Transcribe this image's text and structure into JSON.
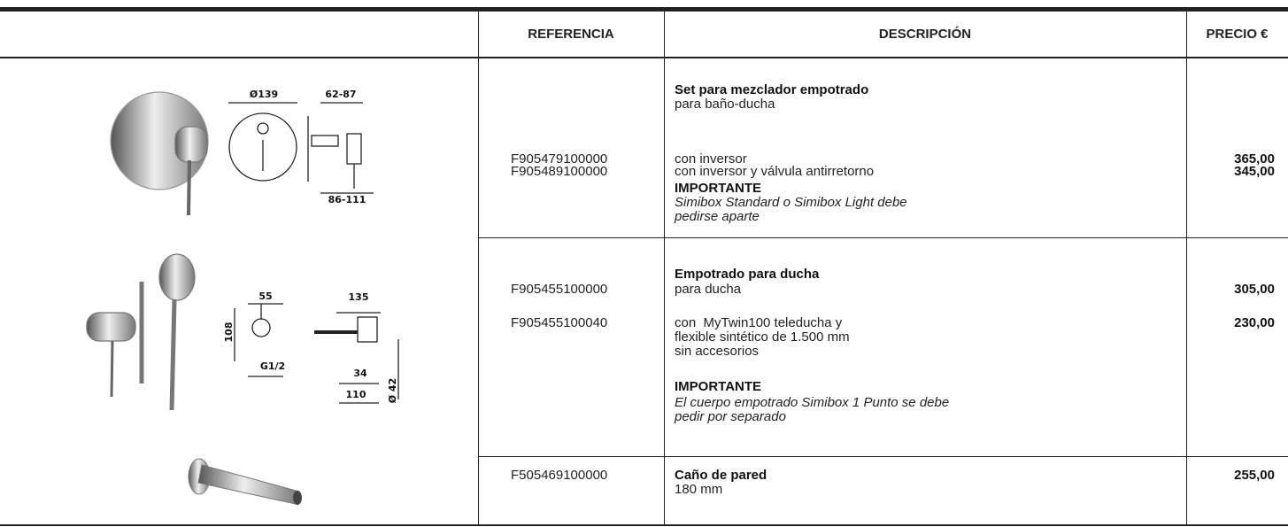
{
  "header": {
    "referencia": "REFERENCIA",
    "descripcion": "DESCRIPCIÓN",
    "precio": "PRECIO €"
  },
  "rows": [
    {
      "references": [
        "F905479100000",
        "F905489100000"
      ],
      "title": "Set para mezclador empotrado",
      "subtitle": "para baño-ducha",
      "options": [
        "con inversor",
        "con inversor y válvula antirretorno"
      ],
      "important_label": "IMPORTANTE",
      "important_text": [
        "Simibox Standard o Simibox Light debe",
        "pedirse aparte"
      ],
      "prices": [
        "365,00",
        "345,00"
      ],
      "figure_labels": [
        "Ø139",
        "62-87",
        "86-111"
      ]
    },
    {
      "references": [
        "F905455100000",
        "F905455100040"
      ],
      "title": "Empotrado para ducha",
      "subtitle": "para ducha",
      "options": [
        "con  MyTwin100 teleducha y",
        "flexible sintético de 1.500 mm",
        "sin accesorios"
      ],
      "important_label": "IMPORTANTE",
      "important_text": [
        "El cuerpo empotrado Simibox 1 Punto se debe",
        "pedir por separado"
      ],
      "prices": [
        "305,00",
        "230,00"
      ],
      "figure_labels": [
        "55",
        "108",
        "G1/2",
        "135",
        "34",
        "110",
        "Ø 42"
      ]
    },
    {
      "references": [
        "F505469100000"
      ],
      "title": "Caño de pared",
      "subtitle": "180 mm",
      "prices": [
        "255,00"
      ]
    }
  ]
}
